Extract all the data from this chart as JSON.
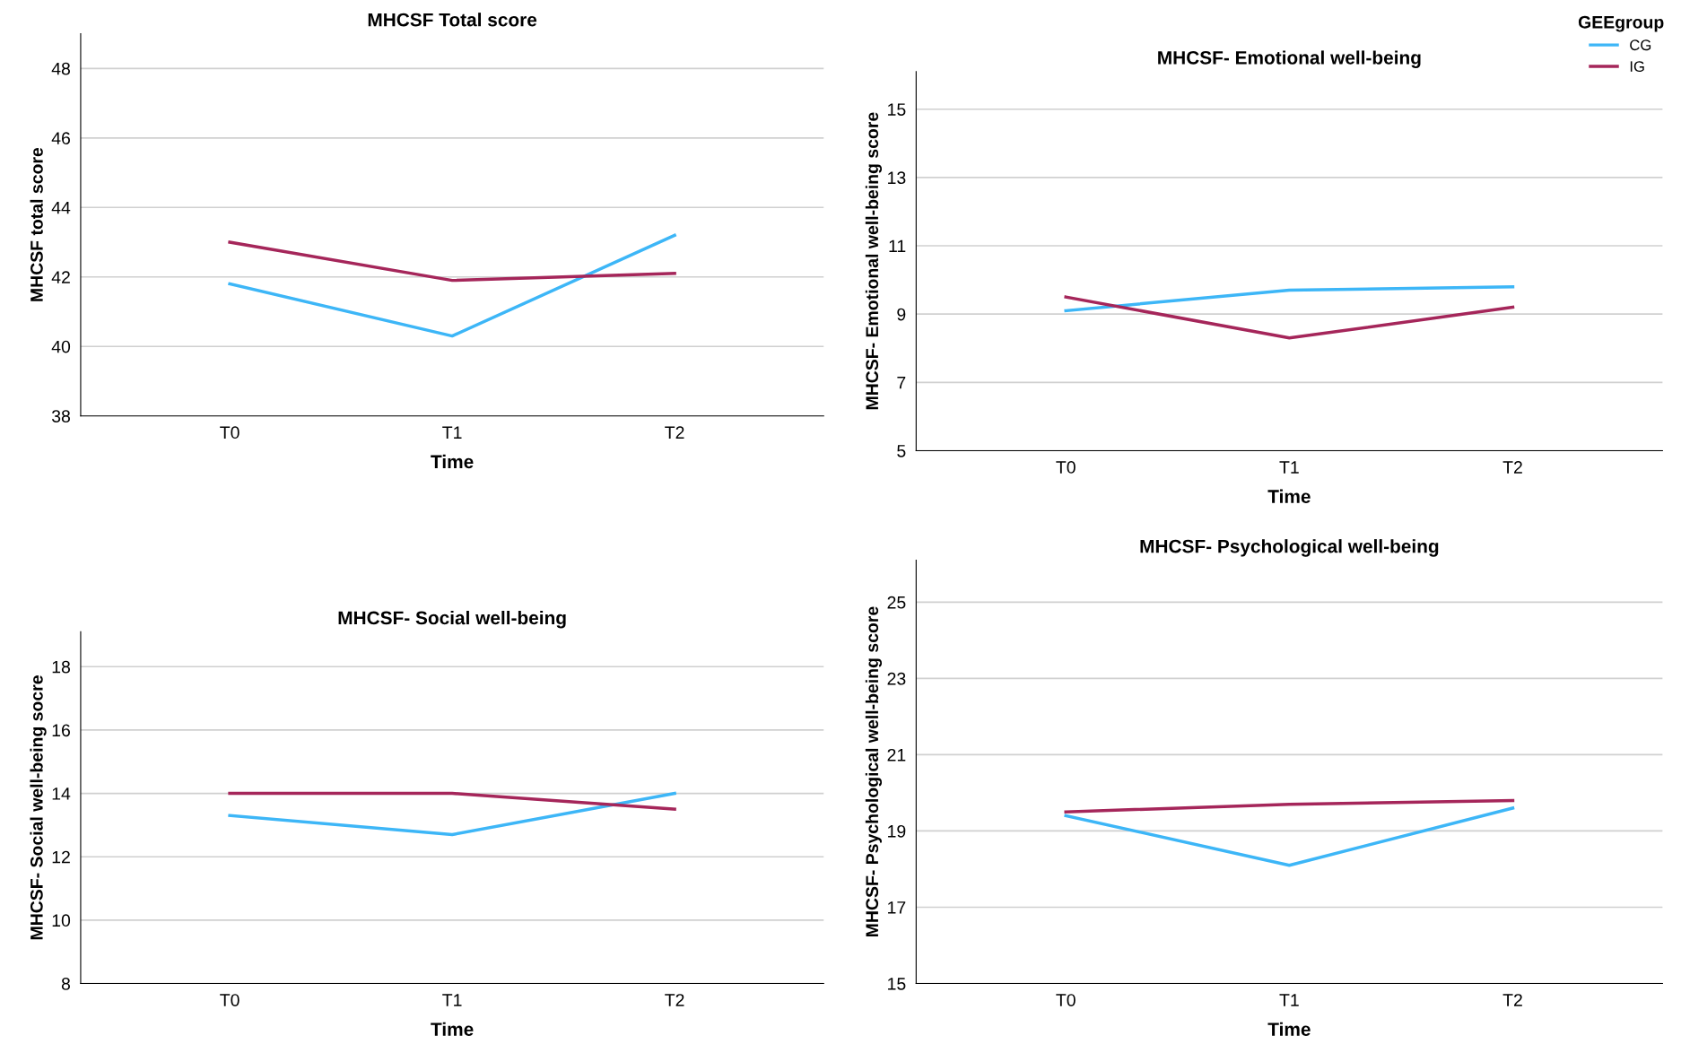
{
  "chart_data": [
    {
      "type": "line",
      "title": "MHCSF Total score",
      "xlabel": "Time",
      "ylabel": "MHCSF total score",
      "categories": [
        "T0",
        "T1",
        "T2"
      ],
      "ylim": [
        38,
        49
      ],
      "yticks": [
        38,
        40,
        42,
        44,
        46,
        48
      ],
      "grid": "y",
      "series": [
        {
          "color": "#3db6f7",
          "values": [
            41.8,
            40.3,
            43.2
          ]
        },
        {
          "color": "#a5265a",
          "values": [
            43.0,
            41.9,
            42.1
          ]
        }
      ]
    },
    {
      "type": "line",
      "title": "MHCSF- Emotional well-being",
      "xlabel": "Time",
      "ylabel": "MHCSF- Emotional well-being score",
      "categories": [
        "T0",
        "T1",
        "T2"
      ],
      "ylim": [
        5,
        16.1
      ],
      "yticks": [
        5,
        7,
        9,
        11,
        13,
        15
      ],
      "grid": "y",
      "legend": "top right",
      "legend_title": "GEEgroup",
      "series": [
        {
          "name": "CG",
          "color": "#3db6f7",
          "values": [
            9.1,
            9.7,
            9.8
          ]
        },
        {
          "name": "IG",
          "color": "#a5265a",
          "values": [
            9.5,
            8.3,
            9.2
          ]
        }
      ]
    },
    {
      "type": "line",
      "title": "MHCSF- Social well-being",
      "xlabel": "Time",
      "ylabel": "MHCSF- Social well-being socre",
      "categories": [
        "T0",
        "T1",
        "T2"
      ],
      "ylim": [
        8,
        19.1
      ],
      "yticks": [
        8,
        10,
        12,
        14,
        16,
        18
      ],
      "grid": "y",
      "series": [
        {
          "color": "#3db6f7",
          "values": [
            13.3,
            12.7,
            14.0
          ]
        },
        {
          "color": "#a5265a",
          "values": [
            14.0,
            14.0,
            13.5
          ]
        }
      ]
    },
    {
      "type": "line",
      "title": "MHCSF- Psychological well-being",
      "xlabel": "Time",
      "ylabel": "MHCSF- Psychological well-being score",
      "categories": [
        "T0",
        "T1",
        "T2"
      ],
      "ylim": [
        15,
        26.1
      ],
      "yticks": [
        15,
        17,
        19,
        21,
        23,
        25
      ],
      "grid": "y",
      "series": [
        {
          "color": "#3db6f7",
          "values": [
            19.4,
            18.1,
            19.6
          ]
        },
        {
          "color": "#a5265a",
          "values": [
            19.5,
            19.7,
            19.8
          ]
        }
      ]
    }
  ]
}
